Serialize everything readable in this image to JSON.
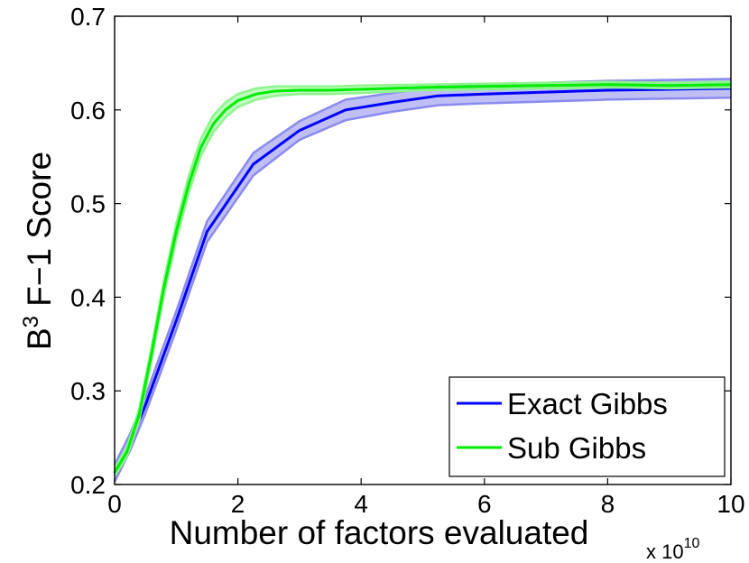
{
  "chart_data": {
    "type": "line",
    "xlabel": "Number of factors evaluated",
    "x_multiplier": "x 10",
    "x_multiplier_exp": "10",
    "ylabel_base": "B",
    "ylabel_sup": "3",
    "ylabel_rest": " F−1 Score",
    "xlim": [
      0,
      10
    ],
    "ylim": [
      0.2,
      0.7
    ],
    "xticks": [
      "0",
      "2",
      "4",
      "6",
      "8",
      "10"
    ],
    "yticks": [
      "0.2",
      "0.3",
      "0.4",
      "0.5",
      "0.6",
      "0.7"
    ],
    "grid": false,
    "legend_position": "bottom-right",
    "series": [
      {
        "name": "Exact Gibbs",
        "color": "#0000ff",
        "band_color": "#8a8aee",
        "x": [
          0,
          0.25,
          0.5,
          0.75,
          1.0,
          1.5,
          2.25,
          3.0,
          3.75,
          4.5,
          5.25,
          6.0,
          7.0,
          8.0,
          9.0,
          10.0
        ],
        "y": [
          0.212,
          0.245,
          0.285,
          0.33,
          0.375,
          0.47,
          0.542,
          0.578,
          0.6,
          0.608,
          0.615,
          0.617,
          0.619,
          0.621,
          0.622,
          0.623
        ],
        "band": [
          0.009,
          0.009,
          0.009,
          0.01,
          0.01,
          0.011,
          0.012,
          0.01,
          0.011,
          0.01,
          0.01,
          0.01,
          0.01,
          0.01,
          0.01,
          0.01
        ]
      },
      {
        "name": "Sub Gibbs",
        "color": "#00ee00",
        "band_color": "#8ef58e",
        "x": [
          0,
          0.2,
          0.4,
          0.6,
          0.8,
          1.0,
          1.2,
          1.4,
          1.6,
          1.8,
          2.0,
          2.3,
          2.6,
          3.0,
          3.5,
          4.0,
          5.0,
          6.0,
          7.0,
          8.0,
          9.0,
          10.0
        ],
        "y": [
          0.213,
          0.235,
          0.275,
          0.34,
          0.41,
          0.47,
          0.52,
          0.56,
          0.585,
          0.6,
          0.61,
          0.617,
          0.62,
          0.621,
          0.621,
          0.622,
          0.624,
          0.625,
          0.626,
          0.627,
          0.626,
          0.627
        ],
        "band": [
          0.004,
          0.005,
          0.006,
          0.007,
          0.008,
          0.009,
          0.009,
          0.009,
          0.009,
          0.008,
          0.007,
          0.006,
          0.005,
          0.004,
          0.004,
          0.004,
          0.003,
          0.003,
          0.003,
          0.003,
          0.003,
          0.003
        ]
      }
    ]
  }
}
